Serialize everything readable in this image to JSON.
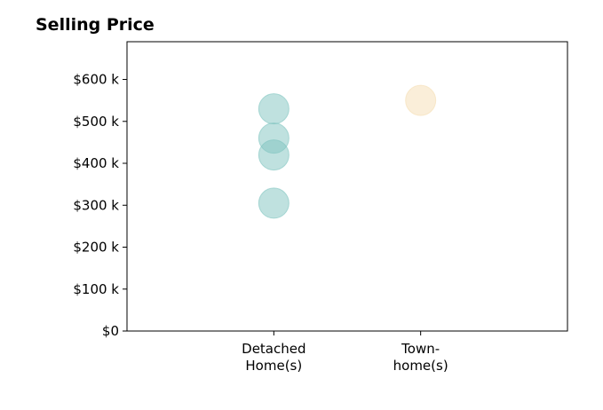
{
  "chart_data": {
    "type": "scatter",
    "title": "Selling Price",
    "xlabel": "",
    "ylabel": "",
    "categories": [
      [
        "Detached",
        "Home(s)"
      ],
      [
        "Town-",
        "home(s)"
      ]
    ],
    "y_tick_values": [
      0,
      100,
      200,
      300,
      400,
      500,
      600
    ],
    "y_tick_labels": [
      "$0",
      "$100 k",
      "$200 k",
      "$300 k",
      "$400 k",
      "$500 k",
      "$600 k"
    ],
    "xlim": [
      -1,
      2
    ],
    "ylim": [
      0,
      690
    ],
    "grid": false,
    "legend": "none",
    "series": [
      {
        "category_index": 0,
        "color": "#7fc4bf",
        "values": [
          305,
          420,
          460,
          530
        ]
      },
      {
        "category_index": 1,
        "color": "#f5deb3",
        "values": [
          550
        ]
      }
    ]
  }
}
